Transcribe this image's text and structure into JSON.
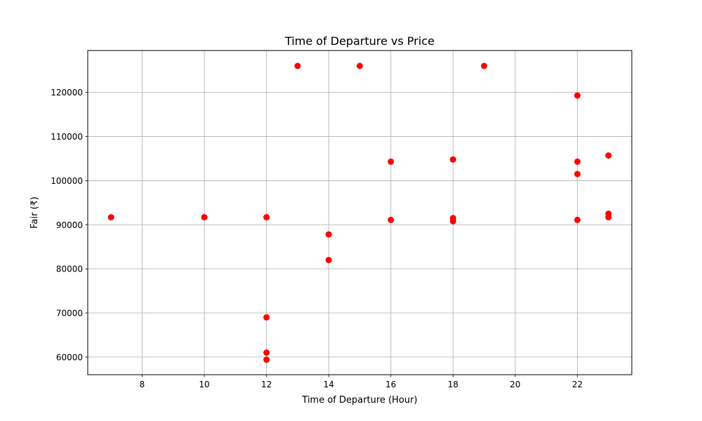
{
  "chart_data": {
    "type": "scatter",
    "title": "Time of Departure vs Price",
    "xlabel": "Time of Departure (Hour)",
    "ylabel": "Fair (₹)",
    "xlim": [
      6.25,
      23.75
    ],
    "ylim": [
      56000,
      129500
    ],
    "xticks": [
      8,
      10,
      12,
      14,
      16,
      18,
      20,
      22
    ],
    "yticks": [
      60000,
      70000,
      80000,
      90000,
      100000,
      110000,
      120000
    ],
    "grid": true,
    "marker_color": "#ff0000",
    "series": [
      {
        "points": [
          {
            "x": 7,
            "y": 91700
          },
          {
            "x": 10,
            "y": 91700
          },
          {
            "x": 12,
            "y": 91700
          },
          {
            "x": 12,
            "y": 69000
          },
          {
            "x": 12,
            "y": 61000
          },
          {
            "x": 12,
            "y": 59400
          },
          {
            "x": 13,
            "y": 126000
          },
          {
            "x": 14,
            "y": 87800
          },
          {
            "x": 14,
            "y": 82000
          },
          {
            "x": 15,
            "y": 126000
          },
          {
            "x": 16,
            "y": 104300
          },
          {
            "x": 16,
            "y": 91100
          },
          {
            "x": 18,
            "y": 104800
          },
          {
            "x": 18,
            "y": 91500
          },
          {
            "x": 18,
            "y": 90800
          },
          {
            "x": 19,
            "y": 126000
          },
          {
            "x": 22,
            "y": 119300
          },
          {
            "x": 22,
            "y": 104300
          },
          {
            "x": 22,
            "y": 101500
          },
          {
            "x": 22,
            "y": 91100
          },
          {
            "x": 23,
            "y": 105700
          },
          {
            "x": 23,
            "y": 92500
          },
          {
            "x": 23,
            "y": 91700
          }
        ]
      }
    ]
  }
}
